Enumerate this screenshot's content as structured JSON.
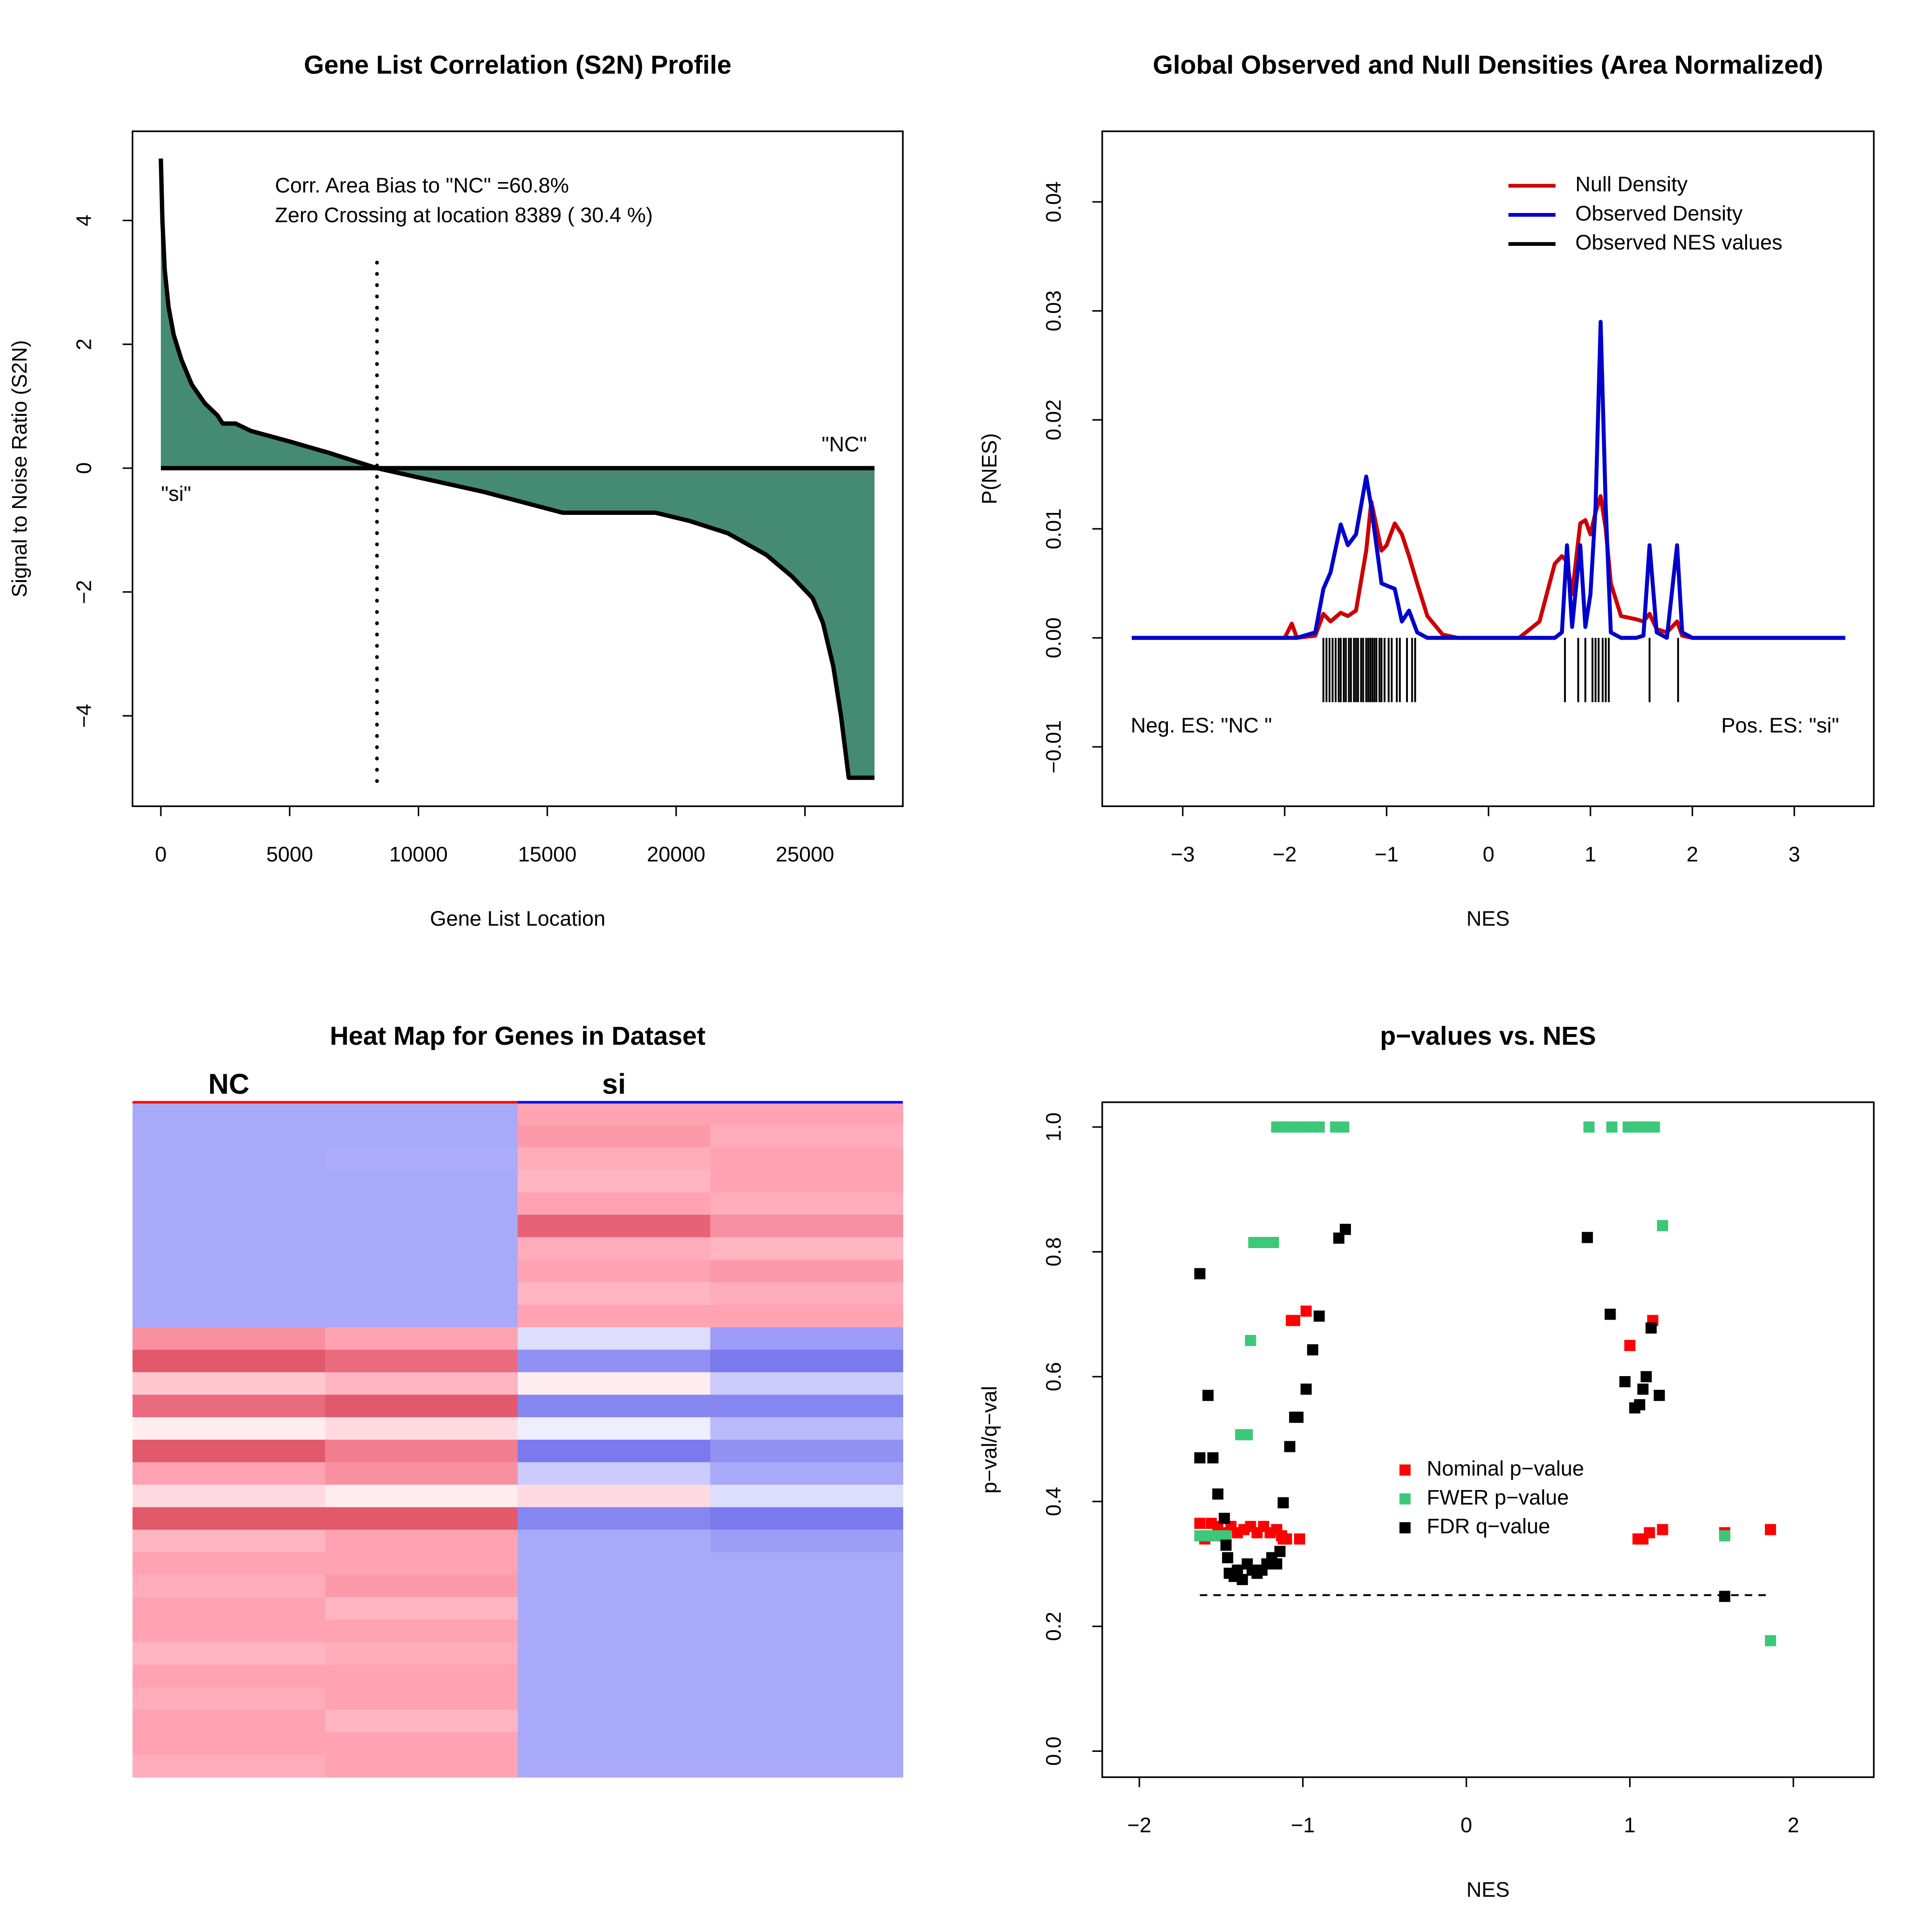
{
  "chart_data": [
    {
      "type": "area",
      "title": "Gene List Correlation (S2N) Profile",
      "xlabel": "Gene List Location",
      "ylabel": "Signal to Noise Ratio (S2N)",
      "x": [
        0,
        60,
        150,
        300,
        500,
        800,
        1200,
        1700,
        2200,
        2400,
        2900,
        3500,
        5000,
        6500,
        8389,
        10000,
        12500,
        15600,
        19200,
        20500,
        22000,
        23500,
        24500,
        25300,
        25700,
        26100,
        26400,
        26700,
        27700
      ],
      "values": [
        5.0,
        4.0,
        3.2,
        2.6,
        2.15,
        1.75,
        1.35,
        1.05,
        0.85,
        0.72,
        0.72,
        0.6,
        0.43,
        0.25,
        0,
        -0.15,
        -0.38,
        -0.72,
        -0.72,
        -0.85,
        -1.05,
        -1.4,
        -1.75,
        -2.1,
        -2.5,
        -3.2,
        -4.0,
        -5.0,
        -5.0
      ],
      "color": "#458b74",
      "zero_crossing": 8389,
      "annotations": [
        "Corr. Area Bias to \"NC\" =60.8%",
        "Zero Crossing at location  8389  ( 30.4  %)",
        "\"NC\"",
        "\"si\""
      ],
      "xlim": [
        -1100,
        28800
      ],
      "xticks": [
        0,
        5000,
        10000,
        15000,
        20000,
        25000
      ],
      "ylim": [
        -5.46,
        5.44
      ],
      "yticks": [
        {
          "value": -4,
          "label": "−4"
        },
        {
          "value": -2,
          "label": "−2"
        },
        0,
        2,
        4
      ]
    },
    {
      "type": "density",
      "title": "Global Observed and Null Densities (Area Normalized)",
      "xlabel": "NES",
      "ylabel": "P(NES)",
      "x": [
        -3.5,
        -2.0,
        -1.93,
        -1.88,
        -1.7,
        -1.62,
        -1.55,
        -1.45,
        -1.38,
        -1.3,
        -1.2,
        -1.15,
        -1.05,
        -1.0,
        -0.92,
        -0.85,
        -0.78,
        -0.7,
        -0.6,
        -0.45,
        -0.3,
        0.3,
        0.5,
        0.65,
        0.72,
        0.77,
        0.82,
        0.9,
        0.95,
        1.0,
        1.05,
        1.1,
        1.15,
        1.2,
        1.3,
        1.45,
        1.52,
        1.58,
        1.65,
        1.75,
        1.85,
        1.9,
        2.0,
        3.5
      ],
      "series": [
        {
          "name": "Null Density",
          "color": "#cc0000",
          "values": [
            0,
            0,
            0.0013,
            0,
            0.0002,
            0.0022,
            0.0015,
            0.0023,
            0.002,
            0.0025,
            0.008,
            0.0125,
            0.008,
            0.0085,
            0.0105,
            0.0095,
            0.0075,
            0.005,
            0.002,
            0.0003,
            0,
            0,
            0.0015,
            0.0068,
            0.0075,
            0.007,
            0.004,
            0.0105,
            0.0108,
            0.0095,
            0.0115,
            0.013,
            0.01,
            0.005,
            0.002,
            0.0017,
            0.0015,
            0.0022,
            0.0008,
            0.0005,
            0.0015,
            0.0002,
            0,
            0
          ]
        },
        {
          "name": "Observed Density",
          "color": "#0000cc",
          "values": [
            0,
            0,
            0,
            0,
            0.0005,
            0.0045,
            0.006,
            0.0104,
            0.0085,
            0.0095,
            0.0148,
            0.012,
            0.005,
            0.0048,
            0.0045,
            0.0015,
            0.0025,
            0.0005,
            0,
            0,
            0,
            0,
            0,
            0,
            0.0005,
            0.0085,
            0.001,
            0.0085,
            0.001,
            0.004,
            0.012,
            0.029,
            0.012,
            0.0005,
            0,
            0,
            0.0002,
            0.0085,
            0.0005,
            0,
            0.0085,
            0.0005,
            0,
            0
          ]
        }
      ],
      "rug": {
        "name": "Observed NES values",
        "color": "#000000",
        "values": [
          -1.62,
          -1.59,
          -1.56,
          -1.53,
          -1.5,
          -1.47,
          -1.45,
          -1.42,
          -1.4,
          -1.37,
          -1.35,
          -1.32,
          -1.3,
          -1.28,
          -1.25,
          -1.23,
          -1.2,
          -1.18,
          -1.16,
          -1.14,
          -1.12,
          -1.1,
          -1.07,
          -1.05,
          -1.02,
          -0.98,
          -0.95,
          -0.9,
          -0.87,
          -0.8,
          -0.75,
          -0.72,
          0.75,
          0.88,
          0.95,
          1.02,
          1.05,
          1.08,
          1.12,
          1.15,
          1.18,
          1.58,
          1.86
        ]
      },
      "annotations": [
        "Neg. ES: \"NC \"",
        "Pos. ES: \"si\""
      ],
      "legend": "top-right",
      "xlim": [
        -3.79,
        3.78
      ],
      "xticks": [
        {
          "value": -3,
          "label": "−3"
        },
        {
          "value": -2,
          "label": "−2"
        },
        {
          "value": -1,
          "label": "−1"
        },
        0,
        1,
        2,
        3
      ],
      "ylim": [
        -0.01545,
        0.04648
      ],
      "yticks": [
        {
          "value": -0.01,
          "label": "−0.01"
        },
        {
          "value": 0,
          "label": "0.00"
        },
        0.01,
        0.02,
        0.03,
        0.04
      ]
    },
    {
      "type": "heatmap",
      "title": "Heat Map for Genes in Dataset",
      "column_groups": [
        {
          "name": "NC",
          "color": "#ff0000"
        },
        {
          "name": "si",
          "color": "#0000ff"
        }
      ],
      "zlim": [
        -1,
        1
      ],
      "palette": [
        "#6e6eeb",
        "#a9a9fa",
        "#ffffff",
        "#ffa3b3",
        "#dc465a"
      ],
      "rows": [
        [
          -0.5,
          -0.5,
          0.5,
          0.5
        ],
        [
          -0.5,
          -0.5,
          0.55,
          0.45
        ],
        [
          -0.5,
          -0.48,
          0.45,
          0.5
        ],
        [
          -0.5,
          -0.5,
          0.4,
          0.5
        ],
        [
          -0.5,
          -0.5,
          0.5,
          0.45
        ],
        [
          -0.5,
          -0.5,
          0.85,
          0.6
        ],
        [
          -0.5,
          -0.5,
          0.45,
          0.4
        ],
        [
          -0.5,
          -0.5,
          0.5,
          0.55
        ],
        [
          -0.5,
          -0.5,
          0.4,
          0.45
        ],
        [
          -0.5,
          -0.5,
          0.5,
          0.5
        ],
        [
          0.6,
          0.5,
          -0.2,
          -0.6
        ],
        [
          0.9,
          0.8,
          -0.7,
          -0.9
        ],
        [
          0.3,
          0.4,
          0.1,
          -0.3
        ],
        [
          0.8,
          0.9,
          -0.8,
          -0.8
        ],
        [
          0.1,
          0.2,
          -0.1,
          -0.4
        ],
        [
          0.9,
          0.7,
          -0.9,
          -0.7
        ],
        [
          0.5,
          0.6,
          -0.3,
          -0.5
        ],
        [
          0.2,
          0.1,
          0.2,
          -0.2
        ],
        [
          0.9,
          0.9,
          -0.8,
          -0.9
        ],
        [
          0.4,
          0.5,
          -0.5,
          -0.6
        ],
        [
          0.5,
          0.5,
          -0.5,
          -0.5
        ],
        [
          0.45,
          0.55,
          -0.5,
          -0.5
        ],
        [
          0.5,
          0.4,
          -0.5,
          -0.5
        ],
        [
          0.5,
          0.5,
          -0.5,
          -0.5
        ],
        [
          0.4,
          0.45,
          -0.5,
          -0.5
        ],
        [
          0.5,
          0.5,
          -0.5,
          -0.5
        ],
        [
          0.45,
          0.5,
          -0.5,
          -0.5
        ],
        [
          0.5,
          0.4,
          -0.5,
          -0.5
        ],
        [
          0.5,
          0.5,
          -0.5,
          -0.5
        ],
        [
          0.45,
          0.5,
          -0.5,
          -0.5
        ]
      ]
    },
    {
      "type": "scatter",
      "title": "p−values vs. NES",
      "xlabel": "NES",
      "ylabel": "p−val/q−val",
      "series": [
        {
          "name": "Nominal p−value",
          "color": "#ff0000",
          "x": [
            -1.63,
            -1.6,
            -1.56,
            -1.52,
            -1.48,
            -1.44,
            -1.4,
            -1.36,
            -1.32,
            -1.28,
            -1.24,
            -1.2,
            -1.16,
            -1.12,
            -1.07,
            -1.05,
            -1.02,
            -0.98,
            -1.13,
            -1.1,
            1.0,
            1.05,
            1.08,
            1.12,
            1.14,
            1.2,
            1.58,
            1.86
          ],
          "values": [
            0.365,
            0.34,
            0.365,
            0.36,
            0.35,
            0.36,
            0.35,
            0.355,
            0.36,
            0.35,
            0.36,
            0.35,
            0.355,
            0.34,
            0.69,
            0.69,
            0.34,
            0.705,
            0.345,
            0.34,
            0.65,
            0.34,
            0.34,
            0.35,
            0.69,
            0.355,
            0.35,
            0.355
          ]
        },
        {
          "name": "FWER p−value",
          "color": "#3cc878",
          "x": [
            -1.63,
            -1.58,
            -1.54,
            -1.5,
            -1.47,
            -1.38,
            -1.34,
            -1.32,
            -1.3,
            -1.26,
            -1.22,
            -1.18,
            -1.16,
            -1.12,
            -1.08,
            -1.04,
            -0.98,
            -0.94,
            -0.9,
            -0.8,
            -0.75,
            0.75,
            0.89,
            0.99,
            1.03,
            1.07,
            1.1,
            1.15,
            1.2,
            1.58,
            1.86
          ],
          "values": [
            0.345,
            0.345,
            0.345,
            0.345,
            0.345,
            0.507,
            0.507,
            0.658,
            0.815,
            0.815,
            0.815,
            0.815,
            1.0,
            1.0,
            1.0,
            1.0,
            1.0,
            1.0,
            1.0,
            1.0,
            1.0,
            1.0,
            1.0,
            1.0,
            1.0,
            1.0,
            1.0,
            1.0,
            0.842,
            0.345,
            0.177
          ]
        },
        {
          "name": "FDR q−value",
          "color": "#000000",
          "x": [
            -1.63,
            -1.63,
            -1.58,
            -1.55,
            -1.52,
            -1.48,
            -1.47,
            -1.46,
            -1.45,
            -1.42,
            -1.4,
            -1.37,
            -1.34,
            -1.31,
            -1.28,
            -1.25,
            -1.22,
            -1.19,
            -1.16,
            -1.14,
            -1.12,
            -1.08,
            -1.05,
            -1.03,
            -0.98,
            -0.94,
            -0.9,
            -0.78,
            -0.74,
            0.74,
            0.88,
            0.97,
            1.03,
            1.06,
            1.08,
            1.1,
            1.13,
            1.18,
            1.58
          ],
          "values": [
            0.765,
            0.47,
            0.57,
            0.47,
            0.412,
            0.373,
            0.33,
            0.31,
            0.285,
            0.28,
            0.29,
            0.275,
            0.3,
            0.29,
            0.285,
            0.29,
            0.3,
            0.31,
            0.3,
            0.32,
            0.398,
            0.488,
            0.535,
            0.535,
            0.58,
            0.643,
            0.697,
            0.822,
            0.836,
            0.823,
            0.7,
            0.592,
            0.55,
            0.555,
            0.58,
            0.6,
            0.678,
            0.57,
            0.248
          ]
        }
      ],
      "hline": 0.25,
      "legend": "center",
      "xlim": [
        -2.227,
        2.492
      ],
      "xticks": [
        {
          "value": -2,
          "label": "−2"
        },
        {
          "value": -1,
          "label": "−1"
        },
        0,
        1,
        2
      ],
      "ylim": [
        -0.0417,
        1.0397
      ],
      "yticks": [
        {
          "value": 0,
          "label": "0.0"
        },
        0.2,
        0.4,
        0.6,
        0.8,
        {
          "value": 1,
          "label": "1.0"
        }
      ]
    }
  ]
}
